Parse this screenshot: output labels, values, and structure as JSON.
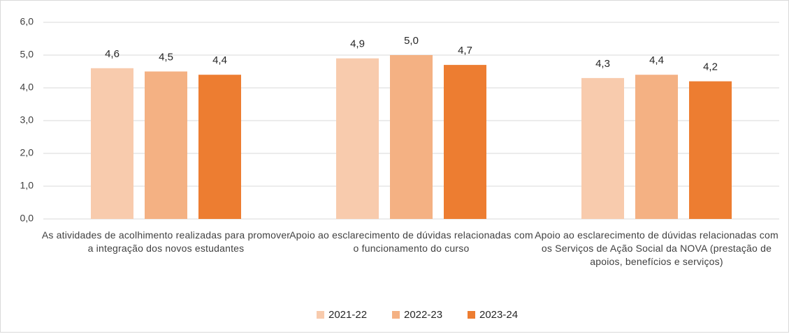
{
  "chart_data": {
    "type": "bar",
    "categories": [
      "As atividades de acolhimento realizadas para promover a integração dos novos estudantes",
      "Apoio ao esclarecimento de dúvidas relacionadas com o funcionamento do curso",
      "Apoio ao esclarecimento de dúvidas relacionadas com os Serviços de Ação Social da NOVA (prestação de apoios, benefícios e serviços)"
    ],
    "series": [
      {
        "name": "2021-22",
        "color": "#f8cbad",
        "values": [
          4.6,
          4.9,
          4.3
        ],
        "value_labels": [
          "4,6",
          "4,9",
          "4,3"
        ]
      },
      {
        "name": "2022-23",
        "color": "#f4b183",
        "values": [
          4.5,
          5.0,
          4.4
        ],
        "value_labels": [
          "4,5",
          "5,0",
          "4,4"
        ]
      },
      {
        "name": "2023-24",
        "color": "#ed7d31",
        "values": [
          4.4,
          4.7,
          4.2
        ],
        "value_labels": [
          "4,4",
          "4,7",
          "4,2"
        ]
      }
    ],
    "ylim": [
      0,
      6
    ],
    "yticks": [
      {
        "value": 0,
        "label": "0,0"
      },
      {
        "value": 1,
        "label": "1,0"
      },
      {
        "value": 2,
        "label": "2,0"
      },
      {
        "value": 3,
        "label": "3,0"
      },
      {
        "value": 4,
        "label": "4,0"
      },
      {
        "value": 5,
        "label": "5,0"
      },
      {
        "value": 6,
        "label": "6,0"
      }
    ],
    "grid": true,
    "legend": "bottom"
  }
}
